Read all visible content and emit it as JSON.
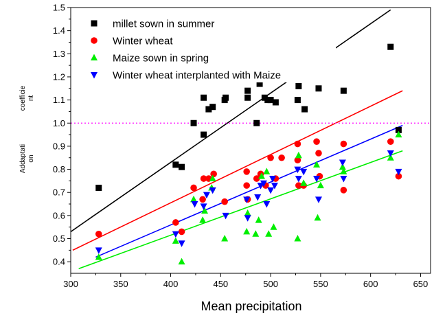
{
  "chart_data": {
    "type": "scatter",
    "title": "",
    "xlabel": "Mean precipitation",
    "ylabel_lines": [
      "coefficie",
      "nt",
      "Addaptati",
      "on"
    ],
    "xlim": [
      300,
      660
    ],
    "ylim": [
      0.35,
      1.5
    ],
    "x_ticks": [
      300,
      350,
      400,
      450,
      500,
      550,
      600,
      650
    ],
    "y_ticks": [
      0.4,
      0.5,
      0.6,
      0.7,
      0.8,
      0.9,
      1.0,
      1.1,
      1.2,
      1.3,
      1.4,
      1.5
    ],
    "x_tick_labels": [
      "300",
      "350",
      "400",
      "450",
      "500",
      "550",
      "600",
      "650"
    ],
    "y_tick_labels": [
      "0.4",
      "0.5",
      "0.6",
      "0.7",
      "0.8",
      "0.9",
      "1.0",
      "1.1",
      "1.2",
      "1.3",
      "1.4",
      "1.5"
    ],
    "grid": false,
    "legend_position": "top-left",
    "reference_line": {
      "y": 1.0,
      "color": "#ff00ff",
      "style": "dotted"
    },
    "series": [
      {
        "name": "millet sown in summer",
        "marker": "square",
        "color": "#000000",
        "points": [
          [
            328,
            0.72
          ],
          [
            405,
            0.82
          ],
          [
            411,
            0.81
          ],
          [
            423,
            1.0
          ],
          [
            433,
            1.11
          ],
          [
            433,
            0.95
          ],
          [
            438,
            1.06
          ],
          [
            442,
            1.07
          ],
          [
            454,
            1.1
          ],
          [
            455,
            1.11
          ],
          [
            477,
            1.14
          ],
          [
            477,
            1.11
          ],
          [
            486,
            1.0
          ],
          [
            489,
            1.17
          ],
          [
            494,
            1.11
          ],
          [
            497,
            1.1
          ],
          [
            500,
            1.1
          ],
          [
            505,
            1.09
          ],
          [
            527,
            1.1
          ],
          [
            528,
            1.16
          ],
          [
            534,
            1.06
          ],
          [
            548,
            1.15
          ],
          [
            573,
            1.14
          ],
          [
            620,
            1.33
          ],
          [
            628,
            0.97
          ]
        ],
        "trendline": [
          [
            300,
            0.53
          ],
          [
            620,
            1.49
          ]
        ]
      },
      {
        "name": "Winter wheat",
        "marker": "circle",
        "color": "#ff0000",
        "points": [
          [
            328,
            0.52
          ],
          [
            405,
            0.57
          ],
          [
            411,
            0.53
          ],
          [
            423,
            0.72
          ],
          [
            432,
            0.67
          ],
          [
            433,
            0.76
          ],
          [
            438,
            0.76
          ],
          [
            443,
            0.78
          ],
          [
            454,
            0.66
          ],
          [
            476,
            0.79
          ],
          [
            476,
            0.73
          ],
          [
            477,
            0.67
          ],
          [
            486,
            0.76
          ],
          [
            490,
            0.78
          ],
          [
            495,
            0.73
          ],
          [
            500,
            0.85
          ],
          [
            505,
            0.76
          ],
          [
            511,
            0.85
          ],
          [
            527,
            0.91
          ],
          [
            527,
            0.84
          ],
          [
            528,
            0.73
          ],
          [
            533,
            0.73
          ],
          [
            546,
            0.92
          ],
          [
            548,
            0.87
          ],
          [
            549,
            0.77
          ],
          [
            573,
            0.91
          ],
          [
            573,
            0.71
          ],
          [
            620,
            0.92
          ],
          [
            628,
            0.77
          ]
        ],
        "trendline": [
          [
            302,
            0.45
          ],
          [
            632,
            1.14
          ]
        ]
      },
      {
        "name": "Maize sown in spring",
        "marker": "triangle-up",
        "color": "#00ee00",
        "points": [
          [
            328,
            0.42
          ],
          [
            405,
            0.49
          ],
          [
            411,
            0.4
          ],
          [
            423,
            0.67
          ],
          [
            432,
            0.58
          ],
          [
            434,
            0.62
          ],
          [
            441,
            0.72
          ],
          [
            442,
            0.76
          ],
          [
            454,
            0.5
          ],
          [
            476,
            0.53
          ],
          [
            477,
            0.61
          ],
          [
            485,
            0.52
          ],
          [
            488,
            0.58
          ],
          [
            491,
            0.77
          ],
          [
            496,
            0.79
          ],
          [
            498,
            0.52
          ],
          [
            503,
            0.55
          ],
          [
            527,
            0.5
          ],
          [
            528,
            0.86
          ],
          [
            533,
            0.74
          ],
          [
            546,
            0.82
          ],
          [
            547,
            0.59
          ],
          [
            550,
            0.73
          ],
          [
            572,
            0.81
          ],
          [
            573,
            0.79
          ],
          [
            620,
            0.85
          ],
          [
            628,
            0.95
          ]
        ],
        "trendline": [
          [
            308,
            0.37
          ],
          [
            632,
            0.88
          ]
        ]
      },
      {
        "name": "Winter wheat interplanted with Maize",
        "marker": "triangle-down",
        "color": "#0000ff",
        "points": [
          [
            328,
            0.45
          ],
          [
            405,
            0.52
          ],
          [
            411,
            0.48
          ],
          [
            424,
            0.65
          ],
          [
            433,
            0.64
          ],
          [
            436,
            0.69
          ],
          [
            442,
            0.71
          ],
          [
            455,
            0.6
          ],
          [
            476,
            0.67
          ],
          [
            477,
            0.59
          ],
          [
            487,
            0.68
          ],
          [
            490,
            0.73
          ],
          [
            493,
            0.74
          ],
          [
            496,
            0.65
          ],
          [
            500,
            0.71
          ],
          [
            502,
            0.76
          ],
          [
            504,
            0.73
          ],
          [
            527,
            0.8
          ],
          [
            528,
            0.76
          ],
          [
            533,
            0.79
          ],
          [
            546,
            0.76
          ],
          [
            548,
            0.67
          ],
          [
            572,
            0.83
          ],
          [
            573,
            0.76
          ],
          [
            620,
            0.87
          ],
          [
            628,
            0.79
          ]
        ],
        "trendline": [
          [
            325,
            0.42
          ],
          [
            632,
            0.99
          ]
        ]
      }
    ]
  }
}
